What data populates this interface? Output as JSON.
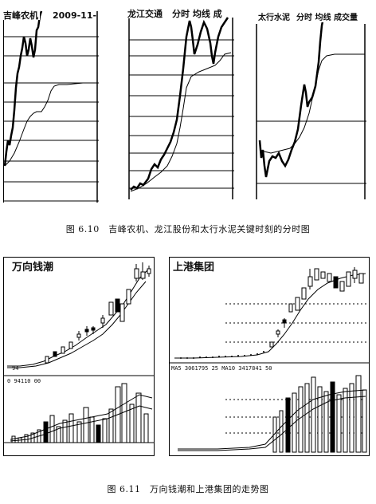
{
  "figure_6_10": {
    "caption": "图 6.10　吉峰农机、龙江股份和太行水泥关键时刻的分时图",
    "panels": [
      {
        "title": "吉峰农机",
        "date": "2009-11-"
      },
      {
        "title": "龙江交通",
        "labels": "分时 均线 成"
      },
      {
        "title": "太行水泥",
        "labels": "分时 均线 成交量"
      }
    ]
  },
  "figure_6_11": {
    "caption": "图 6.11　万向钱潮和上港集团的走势图",
    "left_title": "万向钱潮",
    "left_indicator": "0 94110 00",
    "left_axis_tick": "94",
    "right_title": "上港集团",
    "right_indicator": "MA5 3061795 25 MA10 3417841 50"
  }
}
